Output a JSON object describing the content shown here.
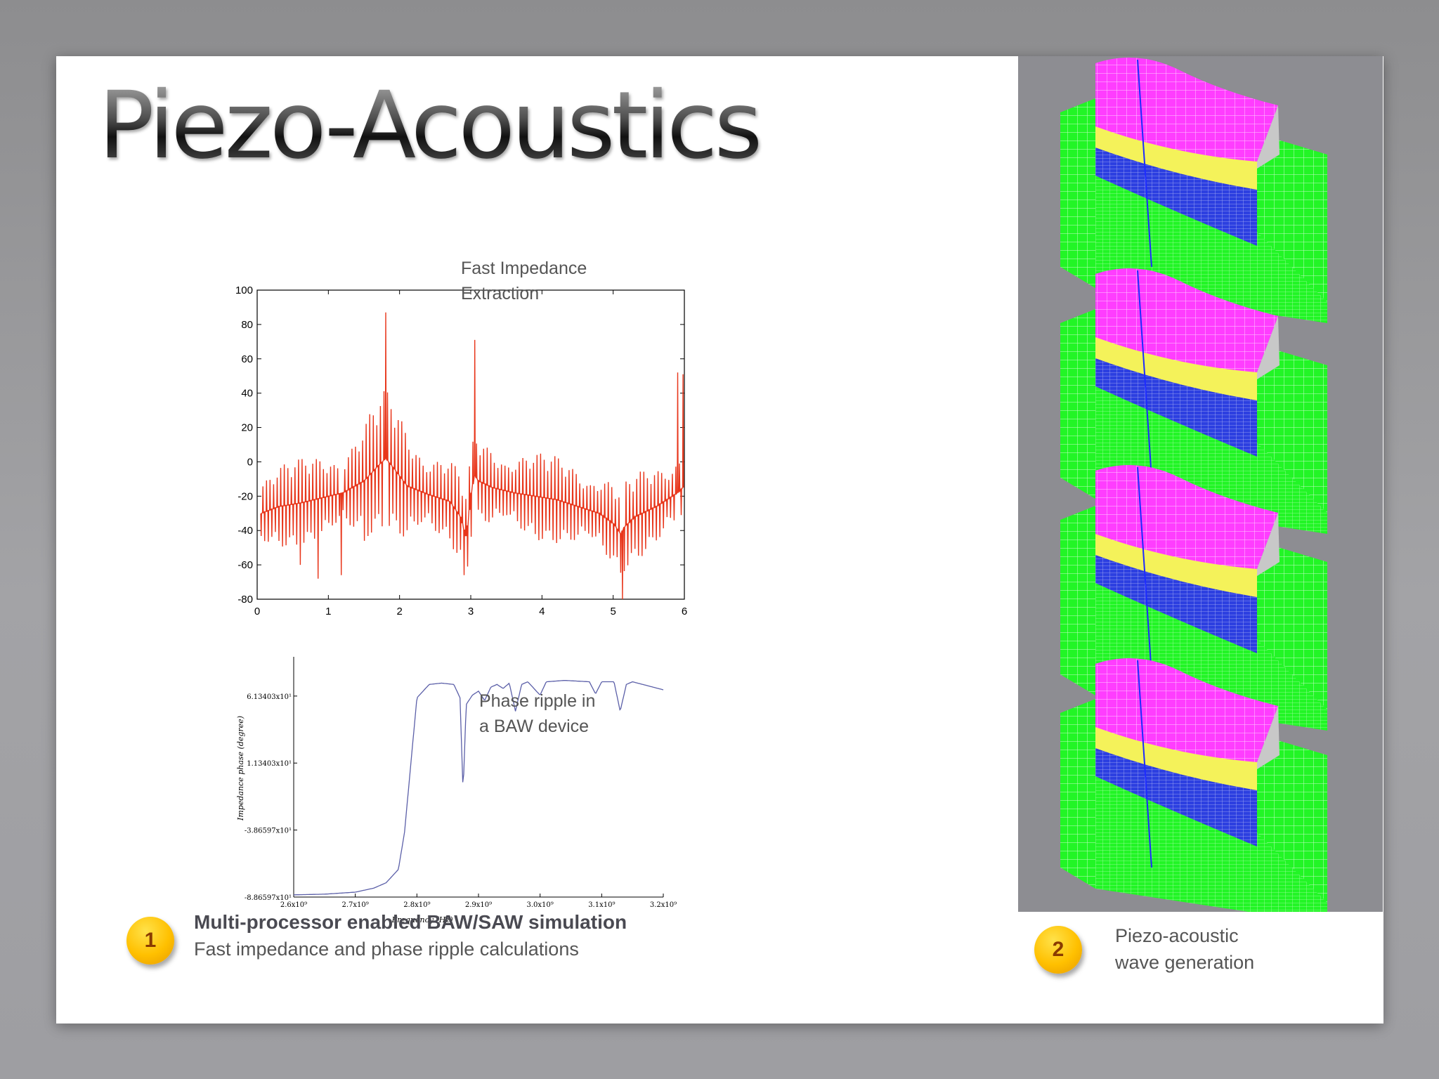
{
  "title": "Piezo-Acoustics",
  "chart_data": [
    {
      "type": "line",
      "title": "",
      "xlabel": "",
      "ylabel": "",
      "xlim": [
        0,
        6
      ],
      "ylim": [
        -80,
        100
      ],
      "x_ticks": [
        "0",
        "1",
        "2",
        "3",
        "4",
        "5",
        "6"
      ],
      "y_ticks": [
        "100",
        "80",
        "60",
        "40",
        "20",
        "0",
        "-20",
        "-40",
        "-60",
        "-80"
      ],
      "annotation": [
        "Fast Impedance",
        "Extraction"
      ],
      "series": [
        {
          "color": "#e8361b",
          "x": [
            0.05,
            0.3,
            0.6,
            0.9,
            1.2,
            1.5,
            1.7,
            1.8,
            1.9,
            2.1,
            2.4,
            2.7,
            2.85,
            2.93,
            2.97,
            3.0,
            3.05,
            3.1,
            3.3,
            3.6,
            3.9,
            4.2,
            4.5,
            4.8,
            5.0,
            5.1,
            5.15,
            5.3,
            5.6,
            5.9,
            6.0
          ],
          "y": [
            -30,
            -26,
            -24,
            -21,
            -18,
            -11,
            -2,
            2,
            -3,
            -14,
            -19,
            -23,
            -32,
            -44,
            -30,
            -18,
            -8,
            -11,
            -15,
            -18,
            -20,
            -22,
            -26,
            -30,
            -36,
            -42,
            -38,
            -32,
            -26,
            -18,
            -14
          ]
        }
      ]
    },
    {
      "type": "line",
      "title": "",
      "xlabel": "Frequency   (Hz)",
      "ylabel": "Impedance  phase   (degree)",
      "xlim": [
        2600000000.0,
        3200000000.0
      ],
      "ylim": [
        -88.6597,
        88
      ],
      "x_ticks": [
        "2.6x10⁹",
        "2.7x10⁹",
        "2.8x10⁹",
        "2.9x10⁹",
        "3.0x10⁹",
        "3.1x10⁹",
        "3.2x10⁹"
      ],
      "y_ticks": [
        "6.13403x10¹",
        "1.13403x10¹",
        "-3.86597x10¹",
        "-8.86597x10¹"
      ],
      "annotation": [
        "Phase ripple in",
        "a BAW device"
      ],
      "series": [
        {
          "color": "#5b5fa8",
          "x": [
            2600000000.0,
            2650000000.0,
            2700000000.0,
            2730000000.0,
            2750000000.0,
            2770000000.0,
            2780000000.0,
            2790000000.0,
            2800000000.0,
            2820000000.0,
            2840000000.0,
            2860000000.0,
            2870000000.0,
            2875000000.0,
            2880000000.0,
            2890000000.0,
            2900000000.0,
            2910000000.0,
            2920000000.0,
            2930000000.0,
            2940000000.0,
            2950000000.0,
            2960000000.0,
            2970000000.0,
            2980000000.0,
            3000000000.0,
            3010000000.0,
            3040000000.0,
            3080000000.0,
            3090000000.0,
            3100000000.0,
            3120000000.0,
            3130000000.0,
            3140000000.0,
            3150000000.0,
            3200000000.0
          ],
          "y": [
            -87,
            -86.5,
            -85,
            -82,
            -78,
            -68,
            -40,
            10,
            60,
            70,
            71,
            70,
            60,
            -10,
            55,
            62,
            65,
            58,
            68,
            70,
            67,
            71,
            50,
            70,
            72,
            62,
            72,
            73,
            72,
            63,
            72,
            72,
            50,
            70,
            72,
            66
          ]
        }
      ]
    }
  ],
  "captions": {
    "badge1": "1",
    "item1_bold": "Multi-processor enabled BAW/SAW simulation",
    "item1_sub": "Fast impedance and phase ripple calculations",
    "badge2": "2",
    "item2_line1": "Piezo-acoustic",
    "item2_line2": "wave generation"
  },
  "render_colors": {
    "top_layer": "#ff3dff",
    "mid_layer": "#f4f25a",
    "low_layer": "#2c3fe0",
    "substrate": "#22f526",
    "background": "#8d8d92"
  }
}
